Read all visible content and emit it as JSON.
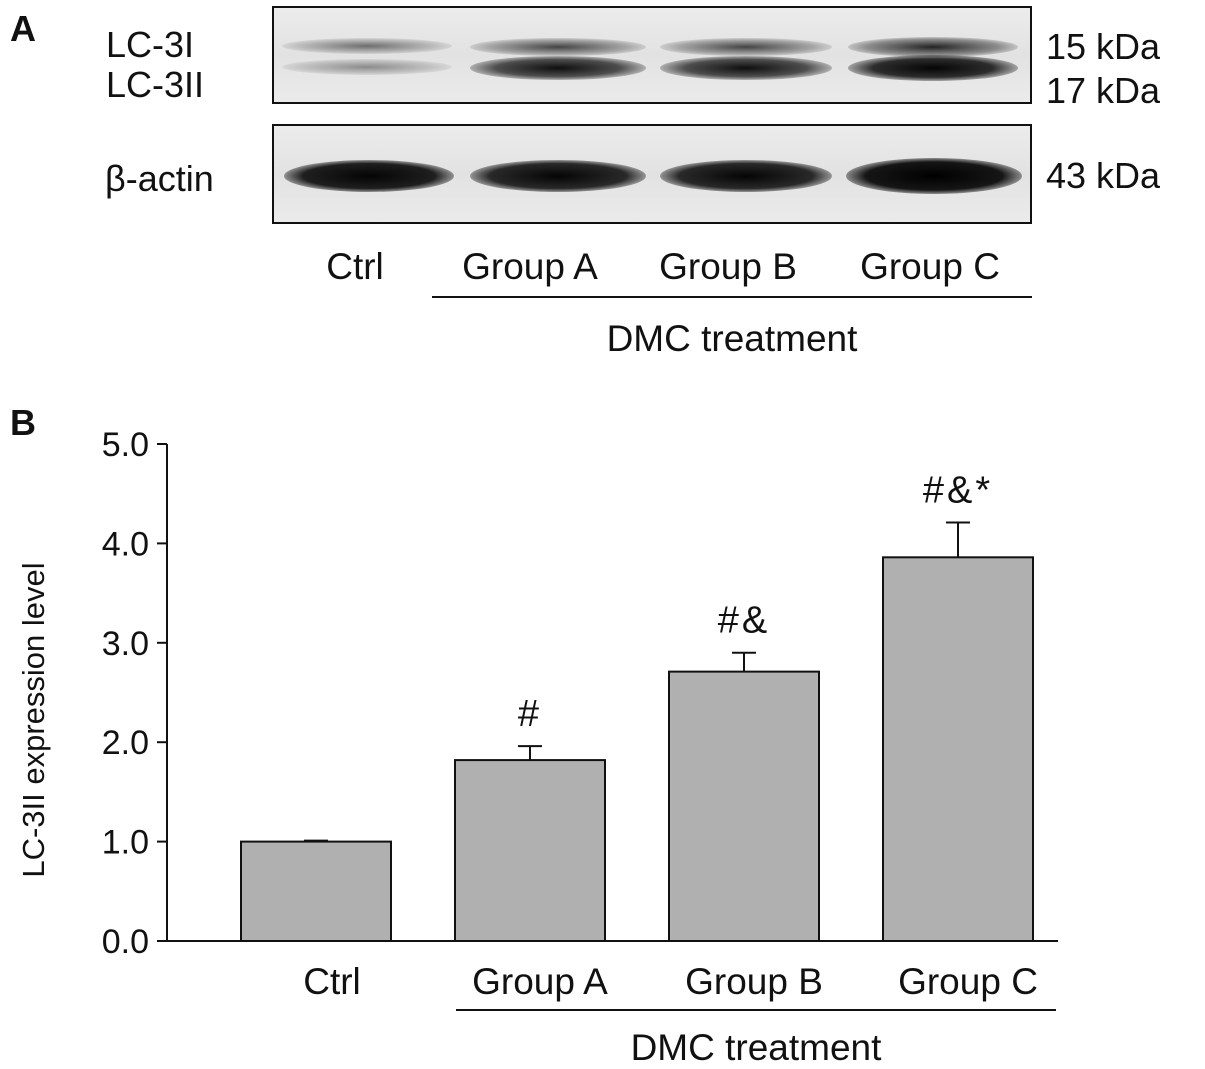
{
  "panel_a": {
    "letter": "A",
    "lc3_labels": [
      "LC-3I",
      "LC-3II"
    ],
    "actin_label": "β-actin",
    "kda_labels": [
      "15 kDa",
      "17 kDa",
      "43 kDa"
    ],
    "lanes": [
      "Ctrl",
      "Group A",
      "Group B",
      "Group C"
    ],
    "treatment_label": "DMC treatment"
  },
  "panel_b": {
    "letter": "B"
  },
  "chart_data": {
    "type": "bar",
    "categories": [
      "Ctrl",
      "Group A",
      "Group B",
      "Group C"
    ],
    "values": [
      1.0,
      1.82,
      2.71,
      3.86
    ],
    "errors": [
      0.01,
      0.14,
      0.19,
      0.35
    ],
    "annotations": [
      "",
      "#",
      "#&",
      "#&*"
    ],
    "ylabel": "LC-3II expression level",
    "xlabel": "",
    "group_label": "DMC treatment",
    "ylim": [
      0,
      5
    ],
    "yticks": [
      "0.0",
      "1.0",
      "2.0",
      "3.0",
      "4.0",
      "5.0"
    ],
    "bar_color": "#b0b0b0",
    "grid": false
  }
}
